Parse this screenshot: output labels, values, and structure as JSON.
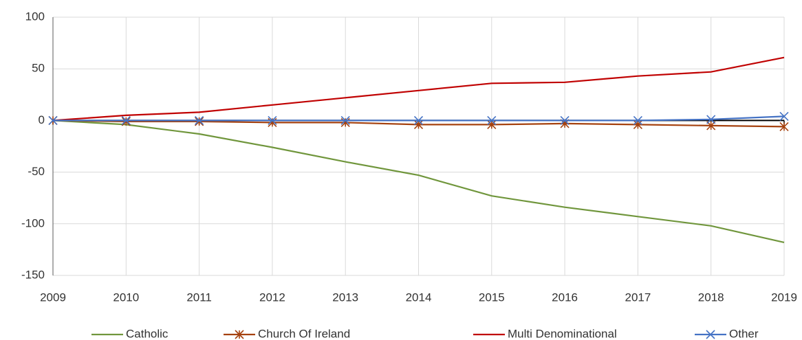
{
  "chart_data": {
    "type": "line",
    "x": [
      2009,
      2010,
      2011,
      2012,
      2013,
      2014,
      2015,
      2016,
      2017,
      2018,
      2019
    ],
    "xlim": [
      2009,
      2019
    ],
    "xticks": [
      2009,
      2010,
      2011,
      2012,
      2013,
      2014,
      2015,
      2016,
      2017,
      2018,
      2019
    ],
    "ylim": [
      -150,
      100
    ],
    "yticks": [
      -150,
      -100,
      -50,
      0,
      50,
      100
    ],
    "grid": true,
    "legend": "bottom",
    "series": [
      {
        "name": "Catholic",
        "color": "#70963c",
        "marker": null,
        "values": [
          0,
          -4,
          -13,
          -26,
          -40,
          -53,
          -73,
          -84,
          -93,
          -102,
          -118
        ]
      },
      {
        "name": "Church Of Ireland",
        "color": "#a5410e",
        "marker": "star",
        "values": [
          0,
          -1,
          -1,
          -2,
          -2,
          -4,
          -4,
          -3,
          -4,
          -5,
          -6
        ]
      },
      {
        "name": "Multi Denominational",
        "color": "#c00000",
        "marker": null,
        "values": [
          0,
          5,
          8,
          15,
          22,
          29,
          36,
          37,
          43,
          47,
          61
        ]
      },
      {
        "name": "Other",
        "color": "#4472c4",
        "marker": "x",
        "values": [
          0,
          0,
          0,
          0,
          0,
          0,
          0,
          0,
          0,
          1,
          4
        ]
      }
    ]
  }
}
